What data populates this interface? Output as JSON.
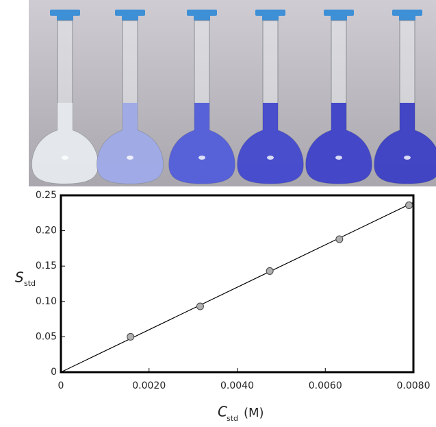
{
  "chart_data": {
    "type": "scatter",
    "x": [
      0.00158,
      0.00316,
      0.00474,
      0.00632,
      0.0079
    ],
    "values": [
      0.05,
      0.093,
      0.143,
      0.188,
      0.236
    ],
    "color": "#b0b0b0",
    "fit_line": {
      "x": [
        0,
        0.008
      ],
      "y": [
        0,
        0.24
      ]
    },
    "xlim": [
      0,
      0.008
    ],
    "ylim": [
      0,
      0.25
    ],
    "xticks": [
      0,
      {
        "value": 0.002,
        "label": "0.0020"
      },
      {
        "value": 0.004,
        "label": "0.0040"
      },
      {
        "value": 0.006,
        "label": "0.0060"
      },
      {
        "value": 0.008,
        "label": "0.0080"
      }
    ],
    "yticks": [
      0,
      0.05,
      {
        "value": 0.1,
        "label": "0.10"
      },
      0.15,
      {
        "value": 0.2,
        "label": "0.20"
      },
      0.25
    ],
    "xlabel": {
      "main": "C",
      "sub": "std",
      "unit": "(M)"
    },
    "ylabel": {
      "main": "S",
      "sub": "std"
    }
  }
}
